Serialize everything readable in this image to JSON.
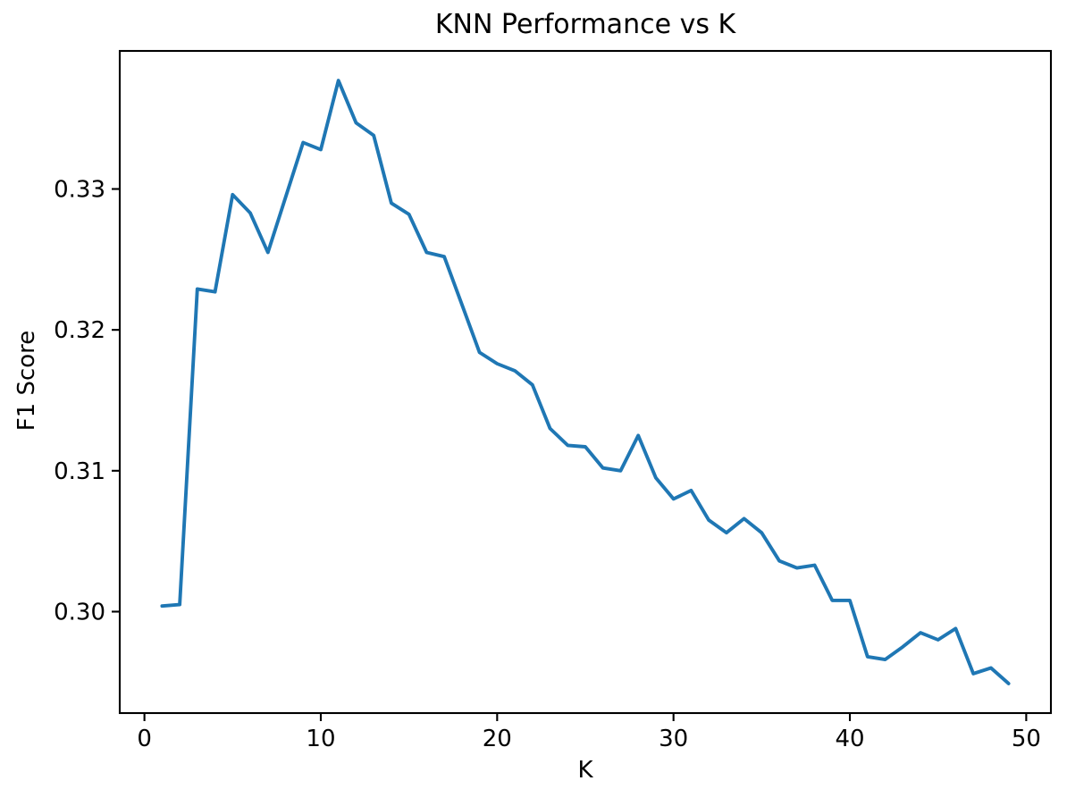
{
  "chart_data": {
    "type": "line",
    "title": "KNN Performance vs K",
    "xlabel": "K",
    "ylabel": "F1 Score",
    "x": [
      1,
      2,
      3,
      4,
      5,
      6,
      7,
      8,
      9,
      10,
      11,
      12,
      13,
      14,
      15,
      16,
      17,
      18,
      19,
      20,
      21,
      22,
      23,
      24,
      25,
      26,
      27,
      28,
      29,
      30,
      31,
      32,
      33,
      34,
      35,
      36,
      37,
      38,
      39,
      40,
      41,
      42,
      43,
      44,
      45,
      46,
      47,
      48,
      49
    ],
    "series": [
      {
        "name": "F1 Score",
        "color": "#1f77b4",
        "values": [
          0.3004,
          0.3005,
          0.3229,
          0.3227,
          0.3296,
          0.3283,
          0.3255,
          0.3294,
          0.3333,
          0.3328,
          0.3377,
          0.3347,
          0.3338,
          0.329,
          0.3282,
          0.3255,
          0.3252,
          0.3218,
          0.3184,
          0.3176,
          0.3171,
          0.3161,
          0.313,
          0.3118,
          0.3117,
          0.3102,
          0.31,
          0.3125,
          0.3095,
          0.308,
          0.3086,
          0.3065,
          0.3056,
          0.3066,
          0.3056,
          0.3036,
          0.3031,
          0.3033,
          0.3008,
          0.3008,
          0.2968,
          0.2966,
          0.2975,
          0.2985,
          0.298,
          0.2988,
          0.2956,
          0.296,
          0.2949
        ]
      }
    ],
    "xlim": [
      -1.4,
      51.4
    ],
    "ylim": [
      0.2928,
      0.3398
    ],
    "xticks": [
      0,
      10,
      20,
      30,
      40,
      50
    ],
    "xtick_labels": [
      "0",
      "10",
      "20",
      "30",
      "40",
      "50"
    ],
    "yticks": [
      0.3,
      0.31,
      0.32,
      0.33
    ],
    "ytick_labels": [
      "0.30",
      "0.31",
      "0.32",
      "0.33"
    ],
    "grid": false,
    "legend": "none",
    "background_color": "#ffffff",
    "axes_color": "#000000"
  }
}
